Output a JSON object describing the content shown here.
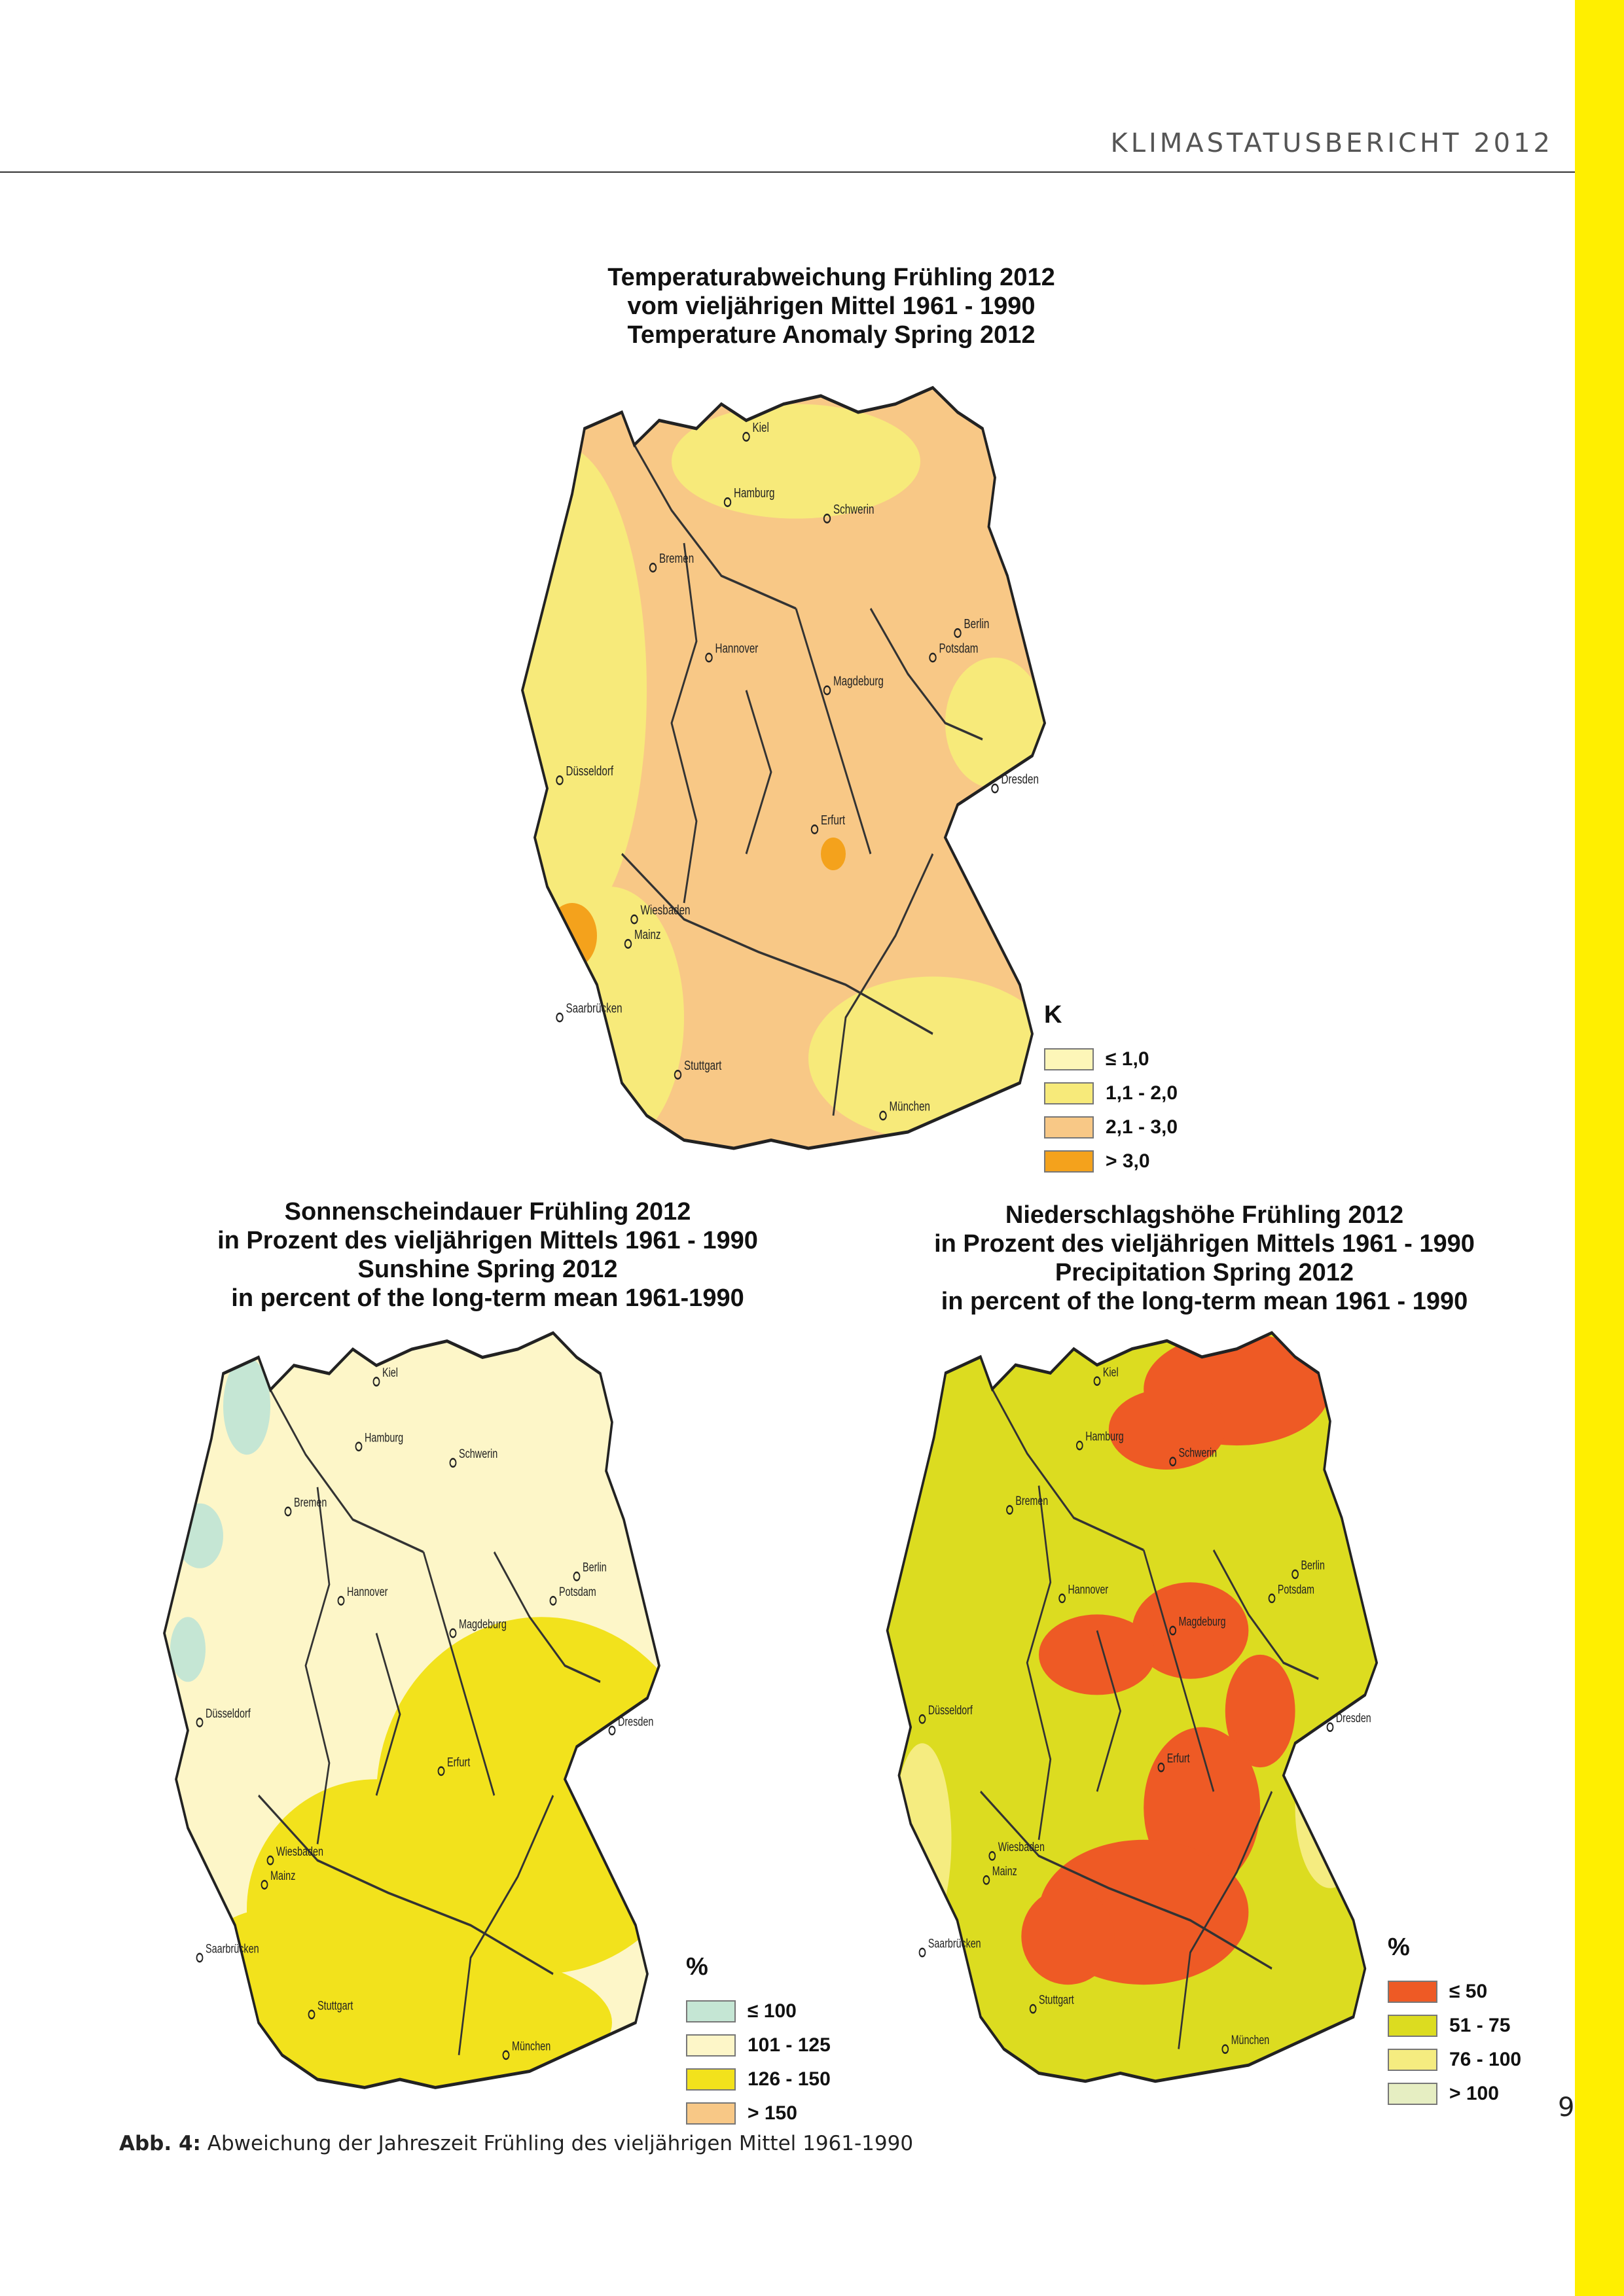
{
  "header": {
    "title": "KLIMASTATUSBERICHT 2012"
  },
  "page_number": "9",
  "caption": {
    "label": "Abb. 4:",
    "text": "Abweichung der Jahreszeit Frühling des vieljährigen Mittel 1961-1990"
  },
  "cities": [
    "Kiel",
    "Hamburg",
    "Schwerin",
    "Bremen",
    "Berlin",
    "Hannover",
    "Potsdam",
    "Magdeburg",
    "Düsseldorf",
    "Dresden",
    "Erfurt",
    "Wiesbaden",
    "Mainz",
    "Saarbrücken",
    "Stuttgart",
    "München"
  ],
  "maps": [
    {
      "title_lines": [
        "Temperaturabweichung Frühling 2012",
        "vom vieljährigen Mittel 1961 - 1990",
        "Temperature Anomaly Spring 2012"
      ],
      "legend_title": "K",
      "legend": [
        {
          "label": "≤ 1,0",
          "color": "#fdf6b8"
        },
        {
          "label": "1,1 - 2,0",
          "color": "#f7ea7a"
        },
        {
          "label": "2,1 - 3,0",
          "color": "#f8c886"
        },
        {
          "label": "> 3,0",
          "color": "#f4a21c"
        }
      ],
      "base_color": "#f8c886",
      "edge_color": "#f7ea7a"
    },
    {
      "title_lines": [
        "Sonnenscheindauer Frühling 2012",
        "in Prozent des vieljährigen Mittels 1961 - 1990",
        "Sunshine Spring 2012",
        "in percent of the long-term mean 1961-1990"
      ],
      "legend_title": "%",
      "legend": [
        {
          "label": "≤ 100",
          "color": "#c5e6d4"
        },
        {
          "label": "101 - 125",
          "color": "#fdf6c8"
        },
        {
          "label": "126 - 150",
          "color": "#f2e21c"
        },
        {
          "label": "> 150",
          "color": "#f8c886"
        }
      ],
      "base_color": "#fdf6c8",
      "edge_color": "#f2e21c"
    },
    {
      "title_lines": [
        "Niederschlagshöhe Frühling 2012",
        "in Prozent des vieljährigen Mittels 1961 - 1990",
        "Precipitation Spring 2012",
        "in percent of the long-term mean 1961 - 1990"
      ],
      "legend_title": "%",
      "legend": [
        {
          "label": "≤ 50",
          "color": "#ee5a25"
        },
        {
          "label": "51 - 75",
          "color": "#dcdc20"
        },
        {
          "label": "76 - 100",
          "color": "#f5ec80"
        },
        {
          "label": "> 100",
          "color": "#e6eec2"
        }
      ],
      "base_color": "#dcdc20",
      "edge_color": "#f5ec80"
    }
  ]
}
